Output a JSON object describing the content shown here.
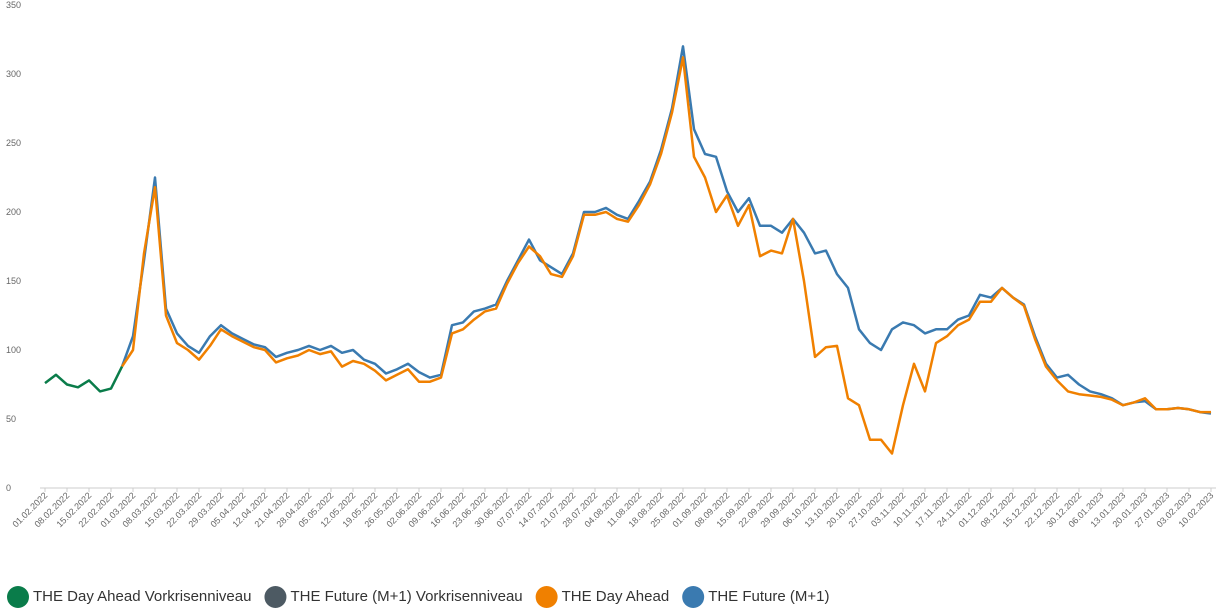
{
  "chart_data": {
    "type": "line",
    "categories": [
      "01.02.2022",
      null,
      "08.02.2022",
      null,
      "15.02.2022",
      null,
      "22.02.2022",
      null,
      "01.03.2022",
      null,
      "08.03.2022",
      null,
      "15.03.2022",
      null,
      "22.03.2022",
      null,
      "29.03.2022",
      null,
      "05.04.2022",
      null,
      "12.04.2022",
      null,
      "21.04.2022",
      null,
      "28.04.2022",
      null,
      "05.05.2022",
      null,
      "12.05.2022",
      null,
      "19.05.2022",
      null,
      "26.05.2022",
      null,
      "02.06.2022",
      null,
      "09.06.2022",
      null,
      "16.06.2022",
      null,
      "23.06.2022",
      null,
      "30.06.2022",
      null,
      "07.07.2022",
      null,
      "14.07.2022",
      null,
      "21.07.2022",
      null,
      "28.07.2022",
      null,
      "04.08.2022",
      null,
      "11.08.2022",
      null,
      "18.08.2022",
      null,
      "25.08.2022",
      null,
      "01.09.2022",
      null,
      "08.09.2022",
      null,
      "15.09.2022",
      null,
      "22.09.2022",
      null,
      "29.09.2022",
      null,
      "06.10.2022",
      null,
      "13.10.2022",
      null,
      "20.10.2022",
      null,
      "27.10.2022",
      null,
      "03.11.2022",
      null,
      "10.11.2022",
      null,
      "17.11.2022",
      null,
      "24.11.2022",
      null,
      "01.12.2022",
      null,
      "08.12.2022",
      null,
      "15.12.2022",
      null,
      "22.12.2022",
      null,
      "30.12.2022",
      null,
      "06.01.2023",
      null,
      "13.01.2023",
      null,
      "20.01.2023",
      null,
      "27.01.2023",
      null,
      "03.02.2023",
      null,
      "10.02.2023"
    ],
    "series": [
      {
        "name": "THE Day Ahead Vorkrisenniveau",
        "color": "#0a7c4a",
        "values": [
          76,
          82,
          75,
          73,
          78,
          70,
          72,
          88,
          null,
          null,
          null,
          null,
          null,
          null,
          null,
          null,
          null,
          null,
          null,
          null,
          null,
          null,
          null,
          null,
          null,
          null,
          null,
          null,
          null,
          null,
          null,
          null,
          null,
          null,
          null,
          null,
          null,
          null,
          null,
          null,
          null,
          null,
          null,
          null,
          null,
          null,
          null,
          null,
          null,
          null,
          null,
          null,
          null,
          null,
          null,
          null,
          null,
          null,
          null,
          null,
          null,
          null,
          null,
          null,
          null,
          null,
          null,
          null,
          null,
          null,
          null,
          null,
          null,
          null,
          null,
          null,
          null,
          null,
          null,
          null,
          null,
          null,
          null,
          null,
          null,
          null,
          null,
          null,
          null,
          null,
          null,
          null,
          null,
          null,
          null,
          null,
          null,
          null,
          null,
          null,
          null,
          null,
          null,
          null,
          null,
          null,
          null
        ]
      },
      {
        "name": "THE Future (M+1) Vorkrisenniveau",
        "color": "#4d5a63",
        "values": [
          null,
          null,
          null,
          null,
          null,
          null,
          null,
          null,
          null,
          null,
          null,
          null,
          null,
          null,
          null,
          null,
          null,
          null,
          null,
          null,
          null,
          null,
          null,
          null,
          null,
          null,
          null,
          null,
          null,
          null,
          null,
          null,
          null,
          null,
          null,
          null,
          null,
          null,
          null,
          null,
          null,
          null,
          null,
          null,
          null,
          null,
          null,
          null,
          null,
          null,
          null,
          null,
          null,
          null,
          null,
          null,
          null,
          null,
          null,
          null,
          null,
          null,
          null,
          null,
          null,
          null,
          null,
          null,
          null,
          null,
          null,
          null,
          null,
          null,
          null,
          null,
          null,
          null,
          null,
          null,
          null,
          null,
          null,
          null,
          null,
          null,
          null,
          null,
          null,
          null,
          null,
          null,
          null,
          null,
          null,
          null,
          null,
          null,
          null,
          null,
          null,
          null,
          null,
          null,
          null,
          null,
          null
        ]
      },
      {
        "name": "THE Day Ahead",
        "color": "#f08000",
        "values": [
          null,
          null,
          null,
          null,
          null,
          null,
          null,
          88,
          100,
          170,
          218,
          125,
          105,
          100,
          93,
          103,
          115,
          110,
          106,
          102,
          100,
          91,
          94,
          96,
          100,
          97,
          99,
          88,
          92,
          90,
          85,
          78,
          82,
          86,
          77,
          77,
          80,
          112,
          115,
          122,
          128,
          130,
          148,
          163,
          175,
          168,
          155,
          153,
          168,
          198,
          198,
          200,
          195,
          193,
          205,
          220,
          242,
          272,
          312,
          240,
          225,
          200,
          212,
          190,
          205,
          168,
          172,
          170,
          195,
          150,
          95,
          102,
          103,
          65,
          60,
          35,
          35,
          25,
          60,
          90,
          70,
          105,
          110,
          118,
          122,
          135,
          135,
          145,
          138,
          132,
          108,
          88,
          78,
          70,
          68,
          67,
          66,
          64,
          60,
          62,
          65,
          57,
          57,
          58,
          57,
          55,
          55
        ]
      },
      {
        "name": "THE Future (M+1)",
        "color": "#3a7ab0",
        "values": [
          null,
          null,
          null,
          null,
          null,
          null,
          null,
          88,
          110,
          165,
          225,
          130,
          112,
          103,
          98,
          110,
          118,
          112,
          108,
          104,
          102,
          95,
          98,
          100,
          103,
          100,
          103,
          98,
          100,
          93,
          90,
          83,
          86,
          90,
          84,
          80,
          82,
          118,
          120,
          128,
          130,
          133,
          150,
          165,
          180,
          165,
          160,
          155,
          170,
          200,
          200,
          203,
          198,
          195,
          208,
          222,
          245,
          275,
          320,
          260,
          242,
          240,
          215,
          200,
          210,
          190,
          190,
          185,
          195,
          185,
          170,
          172,
          155,
          145,
          115,
          105,
          100,
          115,
          120,
          118,
          112,
          115,
          115,
          122,
          125,
          140,
          138,
          145,
          138,
          133,
          110,
          90,
          80,
          82,
          75,
          70,
          68,
          65,
          60,
          62,
          63,
          57,
          57,
          58,
          57,
          55,
          54
        ]
      }
    ],
    "ylim": [
      0,
      350
    ],
    "yticks": [
      0,
      50,
      100,
      150,
      200,
      250,
      300,
      350
    ],
    "grid": false
  }
}
